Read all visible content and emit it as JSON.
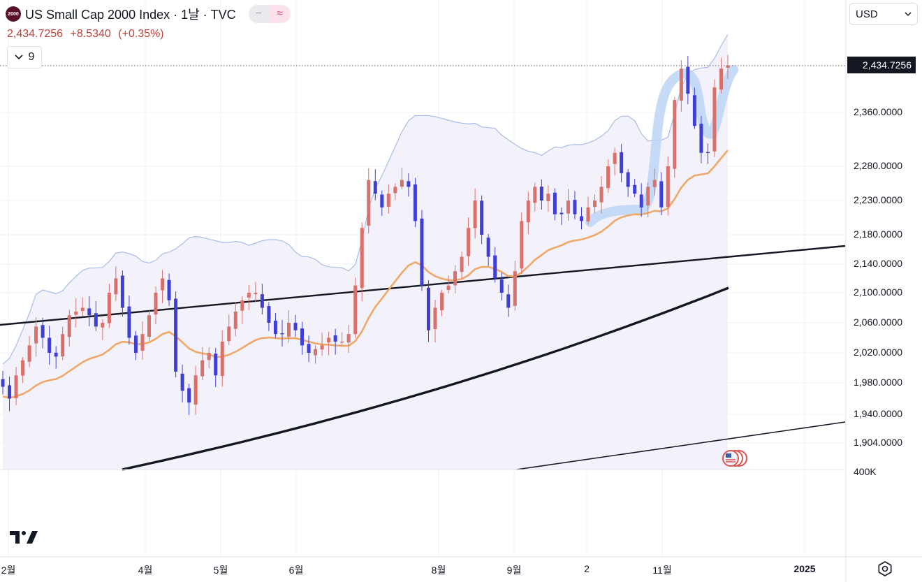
{
  "header": {
    "logo_text": "2000",
    "title": "US Small Cap 2000 Index · 1날 · TVC",
    "price": "2,434.7256",
    "change": "+8.5340",
    "change_pct": "(+0.35%)",
    "collapse_count": "9",
    "pill_minus": "−",
    "pill_wave": "≈"
  },
  "currency": {
    "label": "USD"
  },
  "last_price_label": "2,434.7256",
  "colors": {
    "up": "#d9706b",
    "down": "#3f3fd6",
    "ema_orange": "#f0a869",
    "bb_band": "#a9bde6",
    "highlight": "#bcd6f5",
    "trend": "#131722"
  },
  "chart_data": {
    "type": "candlestick",
    "title": "US Small Cap 2000 Index · 1날 · TVC",
    "x_tick_labels": [
      "2월",
      "4월",
      "5월",
      "6월",
      "8월",
      "9월",
      "2",
      "11월",
      "2025"
    ],
    "y_tick_labels": [
      "2,360.0000",
      "2,280.0000",
      "2,230.0000",
      "2,180.0000",
      "2,140.0000",
      "2,100.0000",
      "2,060.0000",
      "2,020.0000",
      "1,980.0000",
      "1,940.0000",
      "1,904.0000",
      "400K"
    ],
    "last_price": 2434.7256,
    "series": [
      {
        "name": "close",
        "values": [
          1975,
          1960,
          1990,
          2010,
          2030,
          2055,
          2040,
          2020,
          2015,
          2045,
          2070,
          2075,
          2080,
          2070,
          2055,
          2060,
          2100,
          2120,
          2080,
          2040,
          2020,
          2045,
          2070,
          2100,
          2120,
          2090,
          1995,
          1970,
          1955,
          1990,
          2010,
          2020,
          1990,
          2035,
          2055,
          2075,
          2090,
          2100,
          2100,
          2080,
          2060,
          2045,
          2045,
          2060,
          2050,
          2030,
          2020,
          2025,
          2030,
          2040,
          2035,
          2035,
          2045,
          2110,
          2190,
          2260,
          2240,
          2220,
          2240,
          2250,
          2260,
          2250,
          2200,
          2110,
          2050,
          2080,
          2100,
          2110,
          2130,
          2150,
          2190,
          2230,
          2180,
          2150,
          2120,
          2100,
          2080,
          2130,
          2200,
          2230,
          2250,
          2230,
          2240,
          2210,
          2210,
          2230,
          2210,
          2200,
          2220,
          2230,
          2250,
          2280,
          2300,
          2270,
          2250,
          2240,
          2220,
          2250,
          2260,
          2220,
          2280,
          2380,
          2430,
          2390,
          2340,
          2300,
          2300,
          2400,
          2430,
          2435
        ]
      }
    ],
    "overlays": [
      "EMA (orange)",
      "Bollinger upper band",
      "SMA long (black)",
      "Trendlines"
    ]
  },
  "events": {
    "flag_icon": "us-flag-icon"
  },
  "settings_icon": "gear-icon",
  "tv_logo": "TV"
}
